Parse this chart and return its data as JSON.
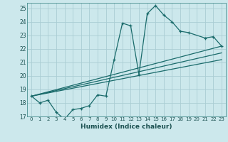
{
  "xlabel": "Humidex (Indice chaleur)",
  "ylabel": "",
  "bg_color": "#cce8ec",
  "grid_color": "#aacdd4",
  "line_color": "#1a6b6b",
  "xlim": [
    -0.5,
    23.5
  ],
  "ylim": [
    17,
    25.4
  ],
  "xticks": [
    0,
    1,
    2,
    3,
    4,
    5,
    6,
    7,
    8,
    9,
    10,
    11,
    12,
    13,
    14,
    15,
    16,
    17,
    18,
    19,
    20,
    21,
    22,
    23
  ],
  "yticks": [
    17,
    18,
    19,
    20,
    21,
    22,
    23,
    24,
    25
  ],
  "series": [
    {
      "x": [
        0,
        1,
        2,
        3,
        4,
        5,
        6,
        7,
        8,
        9,
        10,
        11,
        12,
        13,
        14,
        15,
        16,
        17,
        18,
        19,
        21,
        22,
        23
      ],
      "y": [
        18.5,
        18.0,
        18.2,
        17.3,
        16.8,
        17.5,
        17.6,
        17.8,
        18.6,
        18.5,
        21.2,
        23.9,
        23.7,
        20.1,
        24.6,
        25.2,
        24.5,
        24.0,
        23.3,
        23.2,
        22.8,
        22.9,
        22.2
      ]
    },
    {
      "x": [
        0,
        23
      ],
      "y": [
        18.5,
        22.2
      ]
    },
    {
      "x": [
        0,
        23
      ],
      "y": [
        18.5,
        21.7
      ]
    },
    {
      "x": [
        0,
        23
      ],
      "y": [
        18.5,
        21.2
      ]
    }
  ]
}
